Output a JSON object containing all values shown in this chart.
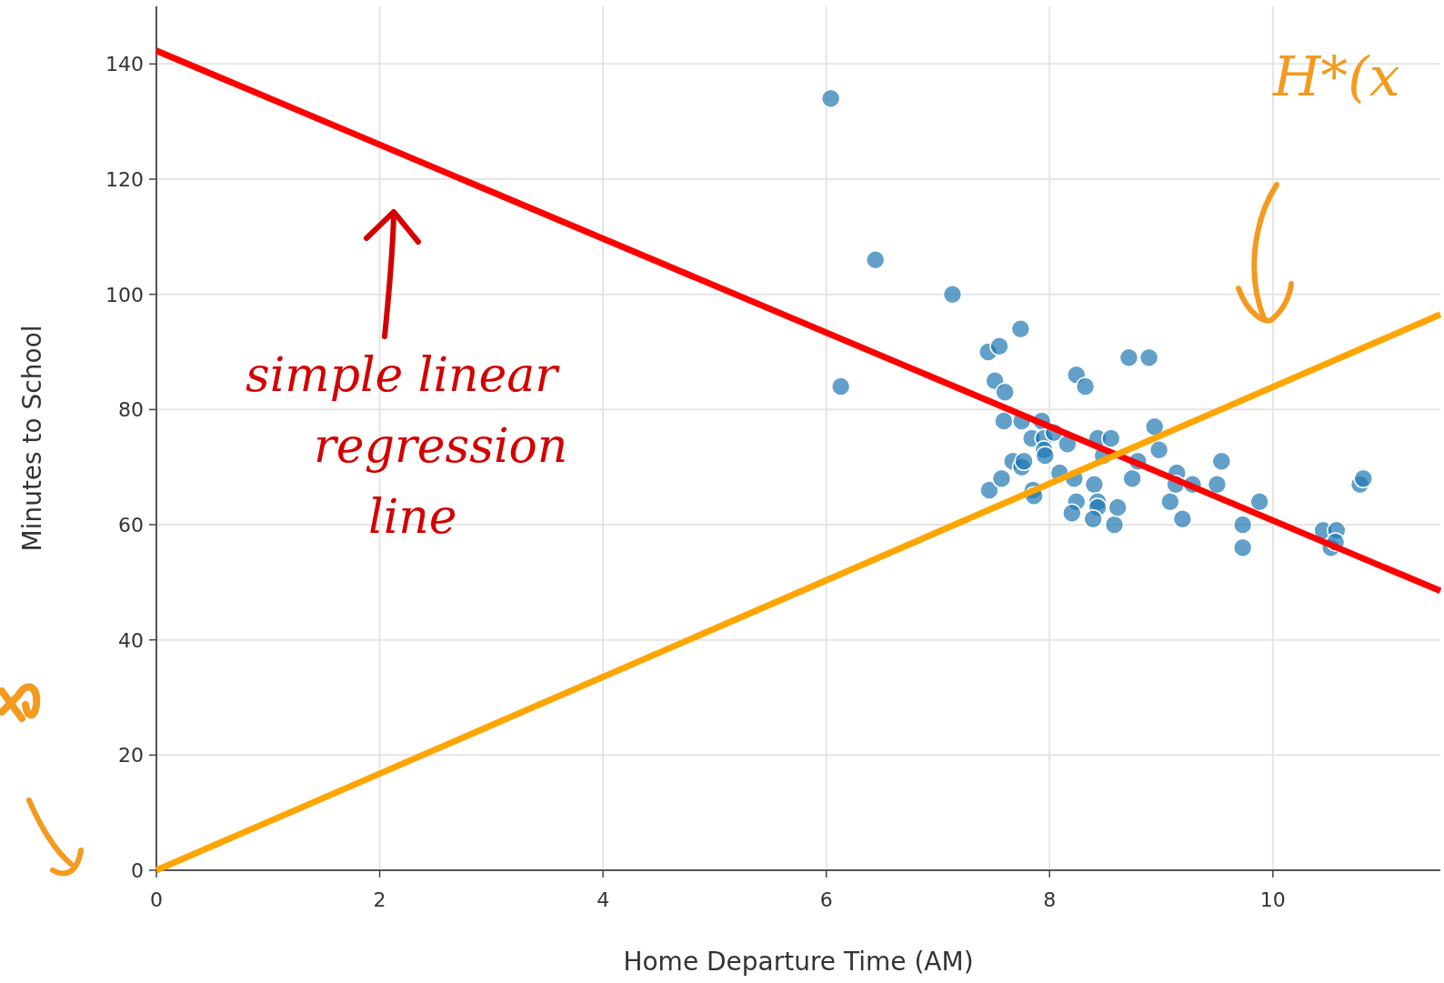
{
  "chart_data": {
    "type": "scatter",
    "xlabel": "Home Departure Time (AM)",
    "ylabel": "Minutes to School",
    "xlim": [
      0,
      11.5
    ],
    "ylim": [
      0,
      150
    ],
    "xticks": [
      0,
      2,
      4,
      6,
      8,
      10
    ],
    "yticks": [
      0,
      20,
      40,
      60,
      80,
      100,
      120,
      140
    ],
    "grid": true,
    "series": [
      {
        "color": "#1f77b4",
        "marker": "circle",
        "x": [
          6.04,
          6.13,
          6.44,
          7.13,
          7.74,
          7.45,
          7.55,
          7.51,
          7.6,
          7.59,
          7.46,
          7.57,
          7.67,
          7.75,
          7.77,
          7.75,
          7.84,
          7.93,
          7.95,
          7.95,
          7.96,
          8.04,
          7.85,
          7.86,
          8.09,
          8.16,
          8.24,
          8.32,
          8.22,
          8.24,
          8.2,
          8.4,
          8.43,
          8.55,
          8.48,
          8.43,
          8.43,
          8.39,
          8.58,
          8.61,
          8.71,
          8.89,
          8.74,
          8.79,
          8.94,
          8.98,
          9.08,
          9.14,
          9.13,
          9.19,
          9.28,
          9.5,
          9.54,
          9.73,
          9.73,
          9.88,
          10.45,
          10.52,
          10.57,
          10.56,
          10.78,
          10.81
        ],
        "values": [
          134,
          84,
          106,
          100,
          94,
          90,
          91,
          85,
          83,
          78,
          66,
          68,
          71,
          70,
          71,
          78,
          75,
          78,
          75,
          73,
          72,
          76,
          66,
          65,
          69,
          74,
          86,
          84,
          68,
          64,
          62,
          67,
          75,
          75,
          72,
          64,
          63,
          61,
          60,
          63,
          89,
          89,
          68,
          71,
          77,
          73,
          64,
          69,
          67,
          61,
          67,
          67,
          71,
          60,
          56,
          64,
          59,
          56,
          59,
          57,
          67,
          68
        ]
      },
      {
        "type": "line",
        "color": "#ff0000",
        "line_style": "solid",
        "x": [
          0,
          11.5
        ],
        "values": [
          142.3,
          48.5
        ]
      },
      {
        "type": "line",
        "color": "#ffa500",
        "line_style": "solid",
        "x": [
          0,
          11.5
        ],
        "values": [
          0,
          96.5
        ]
      }
    ],
    "annotations": [
      "simple linear regression line",
      "H*(x"
    ]
  }
}
